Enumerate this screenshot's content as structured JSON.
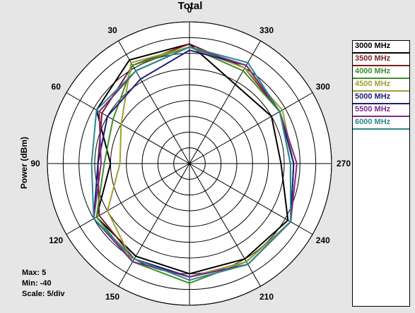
{
  "chart_data": {
    "type": "polar-line",
    "title": "Total",
    "rlabel": "Power  (dBm)",
    "rlim": [
      -40,
      5
    ],
    "r_scale": "5/div",
    "angle_ticks": [
      "0",
      "30",
      "60",
      "90",
      "120",
      "150",
      "180",
      "210",
      "240",
      "270",
      "300",
      "330"
    ],
    "angles": [
      0,
      30,
      60,
      90,
      120,
      150,
      180,
      210,
      240,
      270,
      300,
      330
    ],
    "legend_position": "right",
    "stats": {
      "max": "Max: 5",
      "min": "Min: -40",
      "scale": "Scale: 5/div"
    },
    "series": [
      {
        "name": "3000 MHz",
        "color": "#000000",
        "values": [
          -2,
          -2,
          -6,
          -15,
          -6,
          -6,
          -5,
          -5,
          -4,
          -11,
          -10,
          -11
        ]
      },
      {
        "name": "3500 MHz",
        "color": "#7b1f1f",
        "values": [
          -2,
          -4,
          -8,
          -11,
          -7,
          -5,
          -4,
          -4,
          -3,
          -8,
          -7,
          -5
        ]
      },
      {
        "name": "4000 MHz",
        "color": "#3e8f2a",
        "values": [
          -3,
          -4,
          -12,
          -13,
          -6,
          -4,
          -2,
          -4,
          -3,
          -7,
          -7,
          -6
        ]
      },
      {
        "name": "4500 MHz",
        "color": "#a0a032",
        "values": [
          -3,
          -3,
          -15,
          -18,
          -10,
          -4,
          -4,
          -4,
          -3,
          -7,
          -6,
          -5
        ]
      },
      {
        "name": "5000 MHz",
        "color": "#1b1b7a",
        "values": [
          -4,
          -9,
          -10,
          -11,
          -5,
          -5,
          -4,
          -3,
          -3,
          -7,
          -7,
          -4
        ]
      },
      {
        "name": "5500 MHz",
        "color": "#7d2a8a",
        "values": [
          -3,
          -6,
          -7,
          -12,
          -5,
          -4,
          -4,
          -3,
          -3,
          -6,
          -7,
          -4
        ]
      },
      {
        "name": "6000 MHz",
        "color": "#2a8a8a",
        "values": [
          -3,
          -6,
          -6,
          -9,
          -5,
          -5,
          -3,
          -3,
          -3,
          -8,
          -7,
          -3
        ]
      }
    ]
  }
}
